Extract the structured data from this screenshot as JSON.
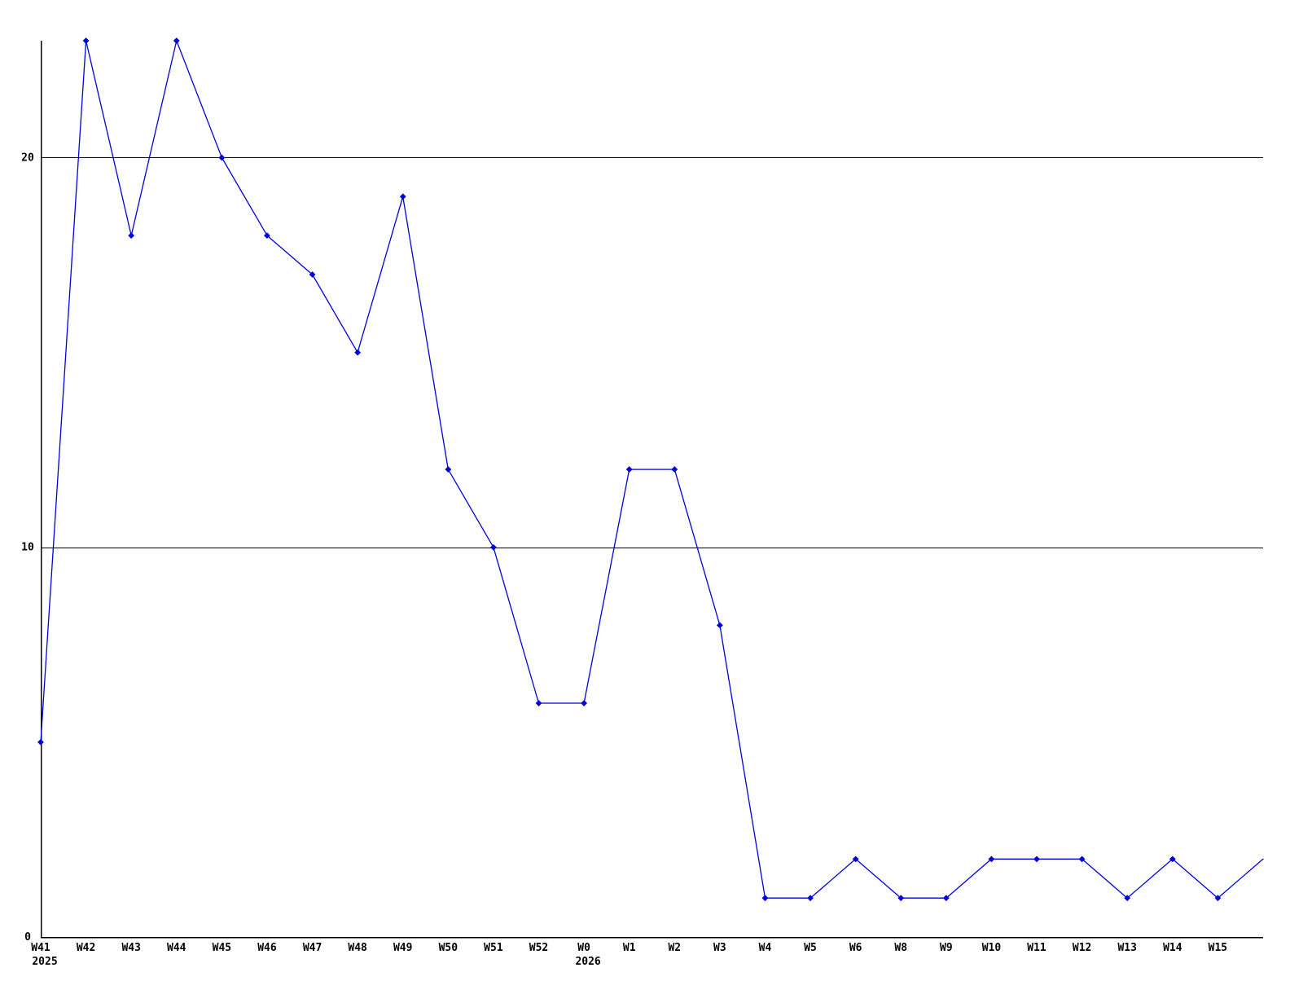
{
  "chart_data": {
    "type": "line",
    "title": "",
    "xlabel": "",
    "ylabel": "",
    "x_categories": [
      "W41",
      "W42",
      "W43",
      "W44",
      "W45",
      "W46",
      "W47",
      "W48",
      "W49",
      "W50",
      "W51",
      "W52",
      "W0",
      "W1",
      "W2",
      "W3",
      "W4",
      "W5",
      "W6",
      "W8",
      "W9",
      "W10",
      "W11",
      "W12",
      "W13",
      "W14",
      "W15"
    ],
    "values": [
      5,
      23,
      18,
      23,
      20,
      18,
      17,
      15,
      19,
      12,
      10,
      6,
      6,
      12,
      12,
      8,
      1,
      1,
      2,
      1,
      1,
      2,
      2,
      2,
      1,
      2,
      1
    ],
    "trailing_point": {
      "value": 2,
      "has_marker": false
    },
    "year_labels": [
      {
        "index": 0,
        "label": "2025"
      },
      {
        "index": 12,
        "label": "2026"
      }
    ],
    "y_ticks": [
      0,
      10,
      20
    ],
    "ylim": [
      0,
      23
    ],
    "grid": "horizontal",
    "legend": "none",
    "line_color": "#0000dd",
    "marker_color": "#0000dd",
    "axis_color": "#000000",
    "grid_color": "#000000",
    "background": "#ffffff"
  }
}
